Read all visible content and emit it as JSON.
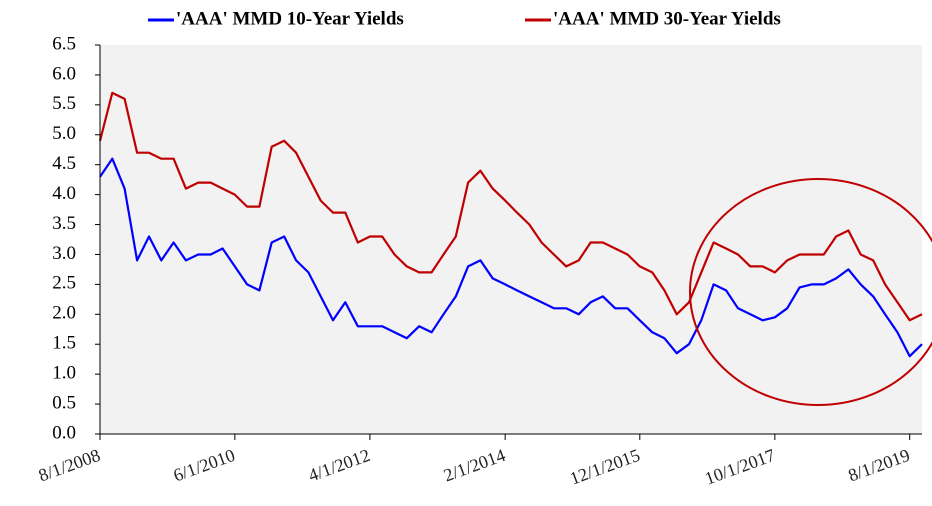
{
  "chart_data": {
    "type": "line",
    "x": [
      "8/1/2008",
      "10/1/2008",
      "12/1/2008",
      "2/1/2009",
      "4/1/2009",
      "6/1/2009",
      "8/1/2009",
      "10/1/2009",
      "12/1/2009",
      "2/1/2010",
      "4/1/2010",
      "6/1/2010",
      "8/1/2010",
      "10/1/2010",
      "12/1/2010",
      "2/1/2011",
      "4/1/2011",
      "6/1/2011",
      "8/1/2011",
      "10/1/2011",
      "12/1/2011",
      "2/1/2012",
      "4/1/2012",
      "6/1/2012",
      "8/1/2012",
      "10/1/2012",
      "12/1/2012",
      "2/1/2013",
      "4/1/2013",
      "6/1/2013",
      "8/1/2013",
      "10/1/2013",
      "12/1/2013",
      "2/1/2014",
      "4/1/2014",
      "6/1/2014",
      "8/1/2014",
      "10/1/2014",
      "12/1/2014",
      "2/1/2015",
      "4/1/2015",
      "6/1/2015",
      "8/1/2015",
      "10/1/2015",
      "12/1/2015",
      "2/1/2016",
      "4/1/2016",
      "6/1/2016",
      "8/1/2016",
      "10/1/2016",
      "12/1/2016",
      "2/1/2017",
      "4/1/2017",
      "6/1/2017",
      "8/1/2017",
      "10/1/2017",
      "12/1/2017",
      "2/1/2018",
      "4/1/2018",
      "6/1/2018",
      "8/1/2018",
      "10/1/2018",
      "12/1/2018",
      "2/1/2019",
      "4/1/2019",
      "6/1/2019",
      "8/1/2019",
      "10/1/2019"
    ],
    "series": [
      {
        "name": "'AAA' MMD 10-Year Yields",
        "color": "#0000ff",
        "values": [
          4.3,
          4.6,
          4.1,
          2.9,
          3.3,
          2.9,
          3.2,
          2.9,
          3.0,
          3.0,
          3.1,
          2.8,
          2.5,
          2.4,
          3.2,
          3.3,
          2.9,
          2.7,
          2.3,
          1.9,
          2.2,
          1.8,
          1.8,
          1.8,
          1.7,
          1.6,
          1.8,
          1.7,
          2.0,
          2.3,
          2.8,
          2.9,
          2.6,
          2.5,
          2.4,
          2.3,
          2.2,
          2.1,
          2.1,
          2.0,
          2.2,
          2.3,
          2.1,
          2.1,
          1.9,
          1.7,
          1.6,
          1.35,
          1.5,
          1.9,
          2.5,
          2.4,
          2.1,
          2.0,
          1.9,
          1.95,
          2.1,
          2.45,
          2.5,
          2.5,
          2.6,
          2.75,
          2.5,
          2.3,
          2.0,
          1.7,
          1.3,
          1.5
        ]
      },
      {
        "name": "'AAA' MMD 30-Year Yields",
        "color": "#c00000",
        "values": [
          4.9,
          5.7,
          5.6,
          4.7,
          4.7,
          4.6,
          4.6,
          4.1,
          4.2,
          4.2,
          4.1,
          4.0,
          3.8,
          3.8,
          4.8,
          4.9,
          4.7,
          4.3,
          3.9,
          3.7,
          3.7,
          3.2,
          3.3,
          3.3,
          3.0,
          2.8,
          2.7,
          2.7,
          3.0,
          3.3,
          4.2,
          4.4,
          4.1,
          3.9,
          3.7,
          3.5,
          3.2,
          3.0,
          2.8,
          2.9,
          3.2,
          3.2,
          3.1,
          3.0,
          2.8,
          2.7,
          2.4,
          2.0,
          2.2,
          2.7,
          3.2,
          3.1,
          3.0,
          2.8,
          2.8,
          2.7,
          2.9,
          3.0,
          3.0,
          3.0,
          3.3,
          3.4,
          3.0,
          2.9,
          2.5,
          2.2,
          1.9,
          2.0
        ]
      }
    ],
    "xlim": [
      "8/1/2008",
      "10/1/2019"
    ],
    "xticks": [
      "8/1/2008",
      "6/1/2010",
      "4/1/2012",
      "2/1/2014",
      "12/1/2015",
      "10/1/2017",
      "8/1/2019"
    ],
    "ylim": [
      0,
      6.5
    ],
    "yticks": [
      {
        "value": 0,
        "label": "0.0"
      },
      0.5,
      {
        "value": 1,
        "label": "1.0"
      },
      1.5,
      {
        "value": 2,
        "label": "2.0"
      },
      2.5,
      {
        "value": 3,
        "label": "3.0"
      },
      3.5,
      {
        "value": 4,
        "label": "4.0"
      },
      4.5,
      {
        "value": 5,
        "label": "5.0"
      },
      5.5,
      {
        "value": 6,
        "label": "6.0"
      },
      6.5
    ],
    "legend": "top"
  }
}
